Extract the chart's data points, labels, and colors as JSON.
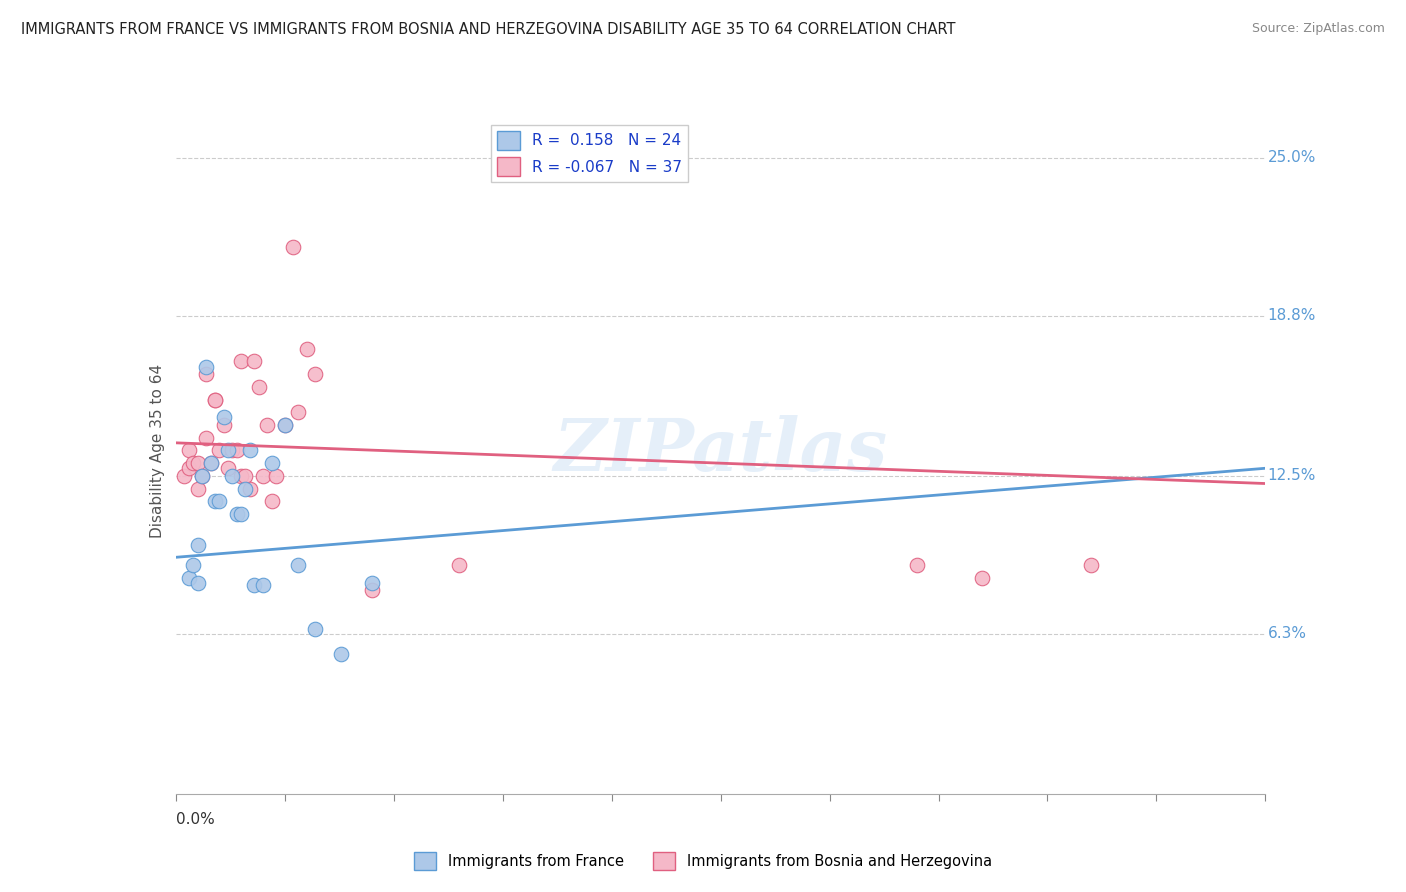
{
  "title": "IMMIGRANTS FROM FRANCE VS IMMIGRANTS FROM BOSNIA AND HERZEGOVINA DISABILITY AGE 35 TO 64 CORRELATION CHART",
  "source": "Source: ZipAtlas.com",
  "ylabel": "Disability Age 35 to 64",
  "y_tick_labels": [
    "6.3%",
    "12.5%",
    "18.8%",
    "25.0%"
  ],
  "y_tick_values": [
    0.063,
    0.125,
    0.188,
    0.25
  ],
  "xlim": [
    0.0,
    0.25
  ],
  "ylim": [
    0.0,
    0.27
  ],
  "france_R": 0.158,
  "france_N": 24,
  "bosnia_R": -0.067,
  "bosnia_N": 37,
  "france_color": "#adc8e8",
  "bosnia_color": "#f5b8c8",
  "france_line_color": "#5b9bd5",
  "bosnia_line_color": "#e06080",
  "watermark": "ZIPatlas",
  "france_line_y0": 0.093,
  "france_line_y1": 0.128,
  "bosnia_line_y0": 0.138,
  "bosnia_line_y1": 0.122,
  "france_scatter_x": [
    0.003,
    0.004,
    0.005,
    0.005,
    0.006,
    0.007,
    0.008,
    0.009,
    0.01,
    0.011,
    0.012,
    0.013,
    0.014,
    0.015,
    0.016,
    0.017,
    0.018,
    0.02,
    0.022,
    0.025,
    0.028,
    0.032,
    0.038,
    0.045
  ],
  "france_scatter_y": [
    0.085,
    0.09,
    0.083,
    0.098,
    0.125,
    0.168,
    0.13,
    0.115,
    0.115,
    0.148,
    0.135,
    0.125,
    0.11,
    0.11,
    0.12,
    0.135,
    0.082,
    0.082,
    0.13,
    0.145,
    0.09,
    0.065,
    0.055,
    0.083
  ],
  "bosnia_scatter_x": [
    0.002,
    0.003,
    0.003,
    0.004,
    0.005,
    0.005,
    0.006,
    0.007,
    0.007,
    0.008,
    0.009,
    0.009,
    0.01,
    0.011,
    0.012,
    0.013,
    0.014,
    0.015,
    0.015,
    0.016,
    0.017,
    0.018,
    0.019,
    0.02,
    0.021,
    0.022,
    0.023,
    0.025,
    0.027,
    0.028,
    0.03,
    0.032,
    0.045,
    0.065,
    0.17,
    0.185,
    0.21
  ],
  "bosnia_scatter_y": [
    0.125,
    0.128,
    0.135,
    0.13,
    0.13,
    0.12,
    0.125,
    0.14,
    0.165,
    0.13,
    0.155,
    0.155,
    0.135,
    0.145,
    0.128,
    0.135,
    0.135,
    0.125,
    0.17,
    0.125,
    0.12,
    0.17,
    0.16,
    0.125,
    0.145,
    0.115,
    0.125,
    0.145,
    0.215,
    0.15,
    0.175,
    0.165,
    0.08,
    0.09,
    0.09,
    0.085,
    0.09
  ]
}
